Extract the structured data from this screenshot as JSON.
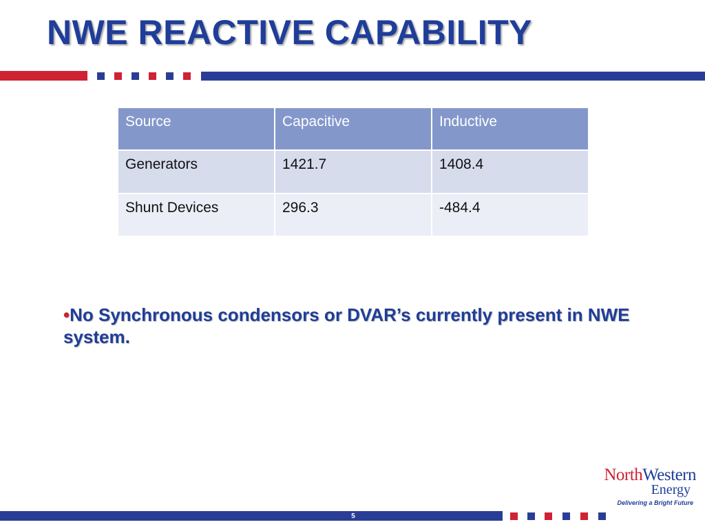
{
  "slide": {
    "title": "NWE REACTIVE CAPABILITY",
    "page_number": "5"
  },
  "table": {
    "headers": [
      "Source",
      "Capacitive",
      "Inductive"
    ],
    "rows": [
      [
        "Generators",
        "1421.7",
        "1408.4"
      ],
      [
        "Shunt Devices",
        "296.3",
        "-484.4"
      ]
    ]
  },
  "bullet": {
    "marker": "•",
    "text": "No Synchronous condensors or DVAR’s currently present in NWE system."
  },
  "logo": {
    "part_north": "North",
    "part_western": "Western",
    "line2": "Energy",
    "tagline": "Delivering a Bright Future"
  },
  "colors": {
    "title_blue": "#1f3d99",
    "brand_red": "#cf2233",
    "brand_blue": "#2a3d96",
    "table_header": "#8497cb",
    "table_row_a": "#d6dcec",
    "table_row_b": "#ebeef6"
  }
}
